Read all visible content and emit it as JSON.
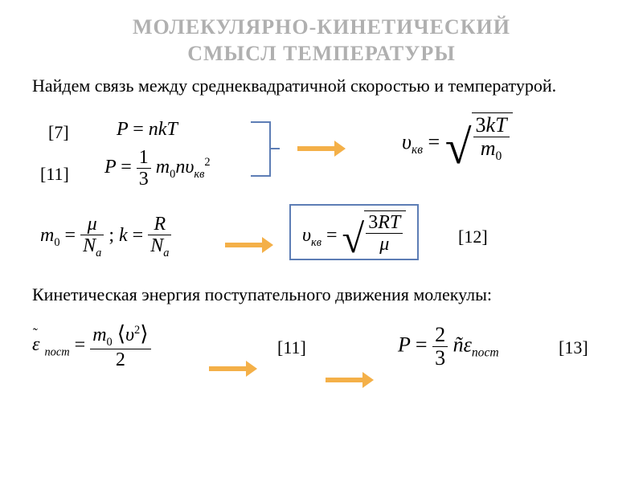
{
  "title_line1": "МОЛЕКУЛЯРНО-КИНЕТИЧЕСКИЙ",
  "title_line2": "СМЫСЛ ТЕМПЕРАТУРЫ",
  "title_fontsize": 26,
  "intro_text": "Найдем связь между среднеквадратичной скоростью и температурой.",
  "body_fontsize": 22,
  "ref7": "[7]",
  "ref11": "[11]",
  "ref12": "[12]",
  "ref13": "[13]",
  "kinetic_text": "Кинетическая энергия поступательного движения молекулы:",
  "formula_fontsize": 24,
  "colors": {
    "title": "#b0b0b0",
    "text": "#000000",
    "arrow_orange": "#f4b048",
    "arrow_blue": "#5d7db5",
    "box_blue": "#5d7db5",
    "formula": "#000000",
    "bracket": "#5d7db5"
  },
  "symbols": {
    "P": "P",
    "n": "n",
    "k": "k",
    "T": "T",
    "m": "m",
    "zero": "0",
    "upsilon": "υ",
    "kv": "кв",
    "mu": "μ",
    "N": "N",
    "a": "a",
    "R": "R",
    "three": "3",
    "one": "1",
    "two": "2",
    "epsilon": "ε",
    "post": "пост",
    "tilde_n": "ñ"
  }
}
